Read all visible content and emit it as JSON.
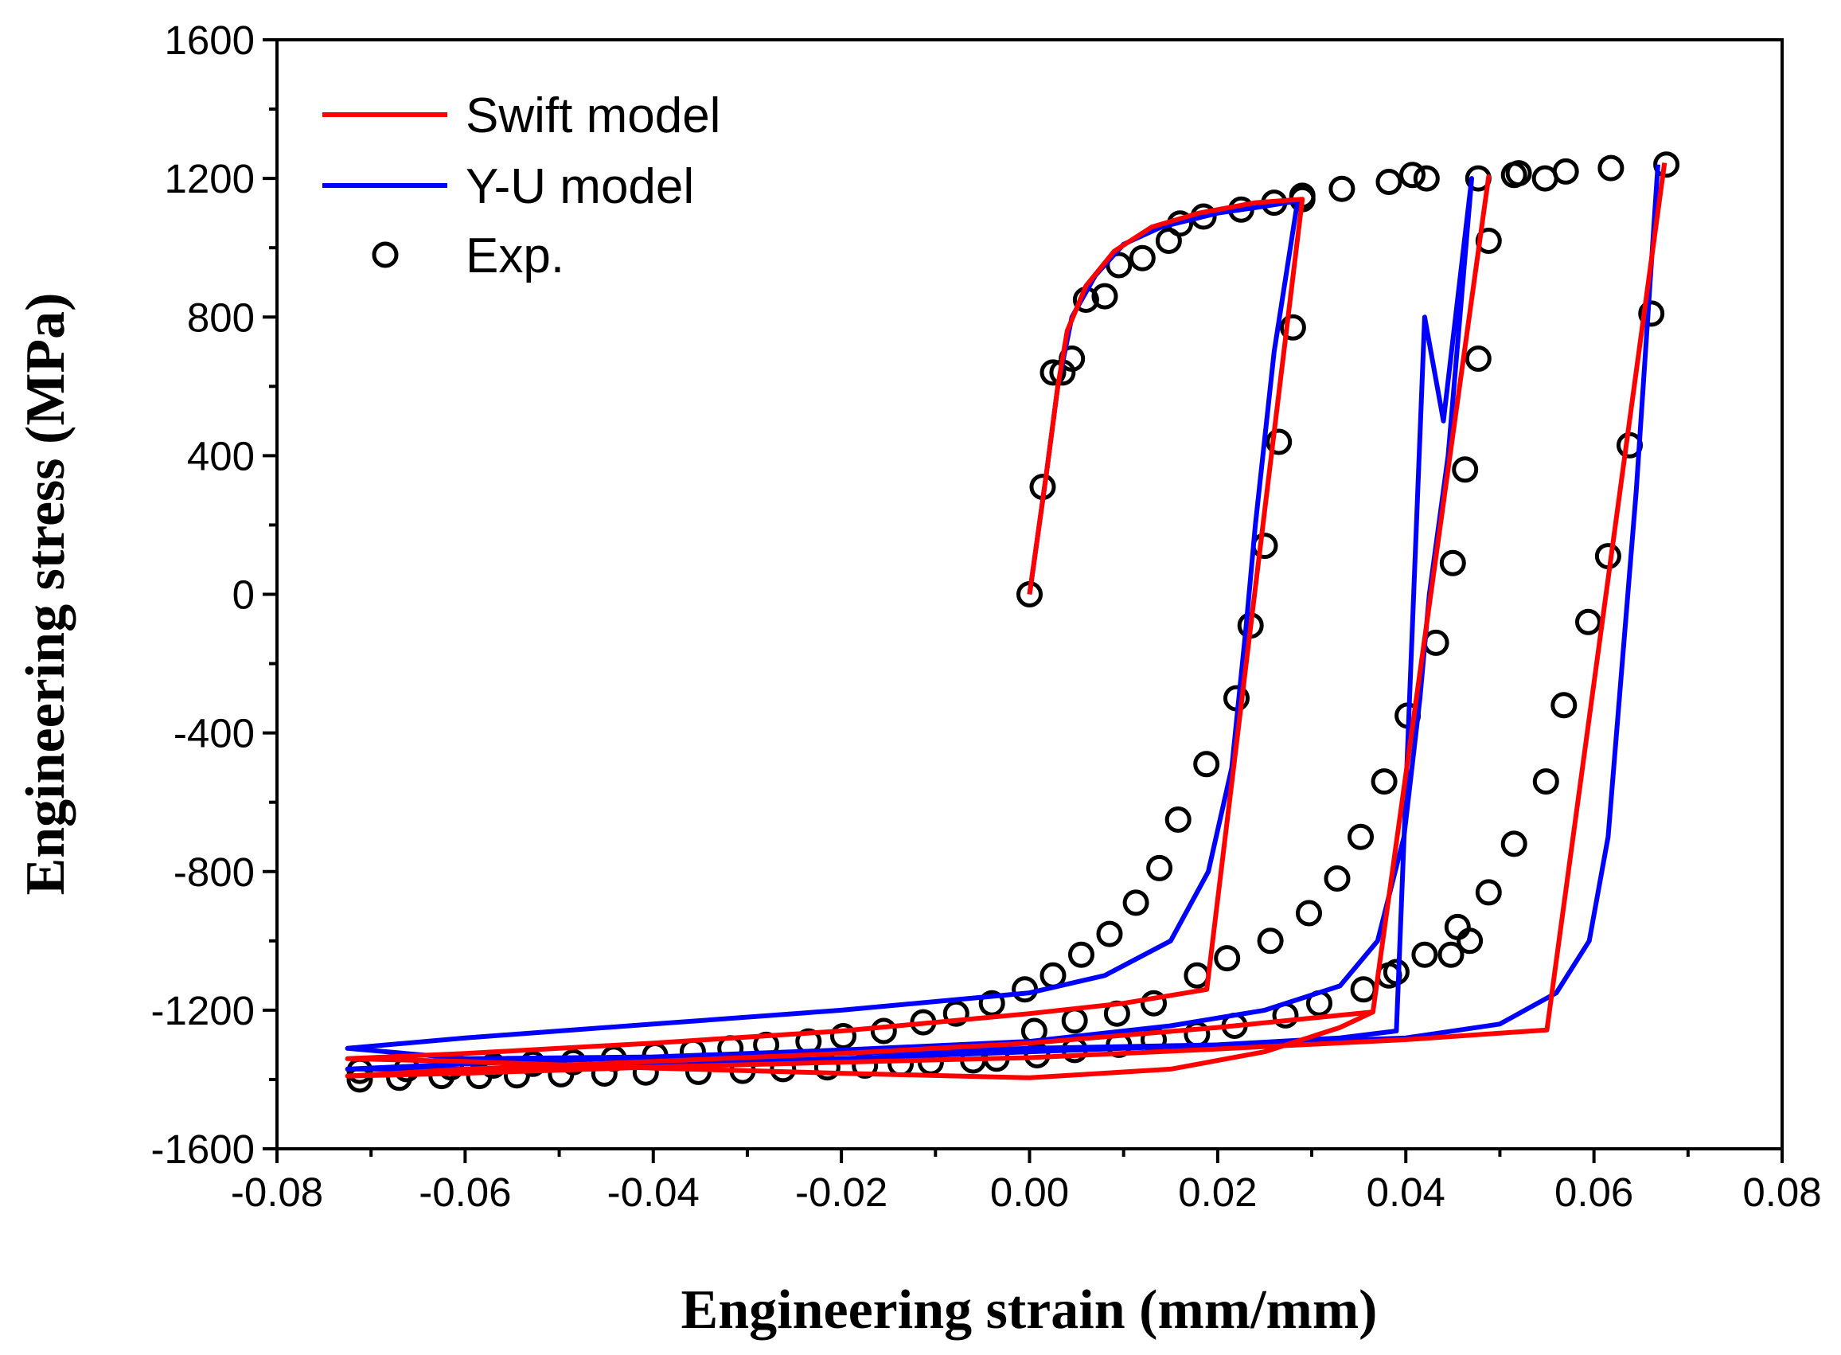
{
  "chart_data": {
    "type": "line",
    "xlabel": "Engineering strain (mm/mm)",
    "ylabel": "Engineering stress (MPa)",
    "xlim": [
      -0.08,
      0.08
    ],
    "ylim": [
      -1600,
      1600
    ],
    "xticks": [
      "-0.08",
      "-0.06",
      "-0.04",
      "-0.02",
      "0.00",
      "0.02",
      "0.04",
      "0.06",
      "0.08"
    ],
    "yticks": [
      "-1600",
      "-1200",
      "-800",
      "-400",
      "0",
      "400",
      "800",
      "1200",
      "1600"
    ],
    "legend_position": "top-left",
    "grid": false,
    "series": [
      {
        "name": "Swift model",
        "kind": "line",
        "color": "#ff0000",
        "x": [
          0.0,
          0.0018,
          0.003,
          0.004,
          0.006,
          0.009,
          0.013,
          0.018,
          0.024,
          0.029,
          0.018846,
          0.01,
          0.0,
          -0.02,
          -0.04,
          -0.06,
          -0.0725,
          -0.06,
          -0.04,
          -0.02,
          0.0,
          0.015,
          0.025,
          0.033,
          0.0365,
          0.0488,
          0.0365,
          0.02,
          0.0,
          -0.02,
          -0.04,
          -0.06,
          -0.0725,
          -0.06,
          -0.04,
          -0.02,
          0.0,
          0.02,
          0.04,
          0.055,
          0.0675
        ],
        "y": [
          0,
          350,
          600,
          760,
          890,
          990,
          1060,
          1100,
          1130,
          1140,
          -1140,
          -1180,
          -1210,
          -1260,
          -1295,
          -1325,
          -1340,
          -1348,
          -1367,
          -1382,
          -1395,
          -1370,
          -1320,
          -1250,
          -1205,
          1205,
          -1205,
          -1250,
          -1295,
          -1325,
          -1348,
          -1370,
          -1390,
          -1382,
          -1364,
          -1350,
          -1337,
          -1312,
          -1285,
          -1257,
          1245
        ]
      },
      {
        "name": "Y-U model",
        "kind": "line",
        "color": "#0000ff",
        "x": [
          0.0,
          0.0018,
          0.003,
          0.0045,
          0.007,
          0.01,
          0.014,
          0.02,
          0.025,
          0.0285,
          0.026,
          0.024,
          0.023,
          0.0215,
          0.019,
          0.015,
          0.008,
          0.0,
          -0.02,
          -0.04,
          -0.06,
          -0.0725,
          -0.06,
          -0.04,
          -0.02,
          0.0,
          0.02,
          0.033,
          0.039,
          0.042,
          0.044,
          0.047,
          0.0445,
          0.0425,
          0.0415,
          0.0398,
          0.037,
          0.033,
          0.025,
          0.015,
          0.0,
          -0.02,
          -0.04,
          -0.06,
          -0.0725,
          -0.06,
          -0.04,
          -0.02,
          0.0,
          0.02,
          0.04,
          0.05,
          0.056,
          0.0595,
          0.0615,
          0.0645,
          0.0668
        ],
        "y": [
          0,
          350,
          600,
          800,
          920,
          1010,
          1060,
          1100,
          1120,
          1135,
          700,
          200,
          -100,
          -500,
          -800,
          -1000,
          -1100,
          -1150,
          -1200,
          -1240,
          -1280,
          -1310,
          -1340,
          -1335,
          -1325,
          -1310,
          -1300,
          -1280,
          -1260,
          800,
          500,
          1200,
          400,
          0,
          -300,
          -700,
          -1000,
          -1130,
          -1200,
          -1245,
          -1290,
          -1315,
          -1335,
          -1355,
          -1370,
          -1370,
          -1355,
          -1340,
          -1320,
          -1300,
          -1280,
          -1240,
          -1150,
          -1000,
          -700,
          300,
          1240
        ]
      },
      {
        "name": "Exp.",
        "kind": "scatter",
        "color": "#000000",
        "x": [
          0.0,
          0.0014,
          0.0025,
          0.0035,
          0.0045,
          0.006,
          0.008,
          0.0095,
          0.012,
          0.0148,
          0.016,
          0.0185,
          0.0225,
          0.026,
          0.029,
          0.029,
          0.028,
          0.0265,
          0.025,
          0.0235,
          0.022,
          0.0188,
          0.0158,
          0.0138,
          0.0113,
          0.0085,
          0.0055,
          0.0025,
          -0.0005,
          -0.004,
          -0.0078,
          -0.0113,
          -0.0155,
          -0.0198,
          -0.0235,
          -0.028,
          -0.0318,
          -0.0358,
          -0.0398,
          -0.0442,
          -0.0485,
          -0.0528,
          -0.057,
          -0.0615,
          -0.0662,
          -0.0712,
          -0.0712,
          -0.067,
          -0.0625,
          -0.0585,
          -0.0545,
          -0.0498,
          -0.0452,
          -0.0408,
          -0.0352,
          -0.0305,
          -0.0262,
          -0.0215,
          -0.0175,
          -0.0137,
          -0.0105,
          -0.006,
          -0.0035,
          0.0008,
          0.0048,
          0.0095,
          0.0132,
          0.0178,
          0.0218,
          0.0272,
          0.0308,
          0.0355,
          0.039,
          0.0448,
          0.0468,
          0.0488,
          0.0477,
          0.0463,
          0.045,
          0.0432,
          0.0402,
          0.0377,
          0.0352,
          0.0327,
          0.0297,
          0.0256,
          0.021,
          0.0178,
          0.0132,
          0.0093,
          0.0048,
          0.0005,
          0.0332,
          0.0382,
          0.0422,
          0.0548,
          0.0515,
          0.0477,
          0.0407,
          0.052,
          0.057,
          0.0618,
          0.0677,
          0.0661,
          0.0638,
          0.0615,
          0.0594,
          0.0568,
          0.0549,
          0.0515,
          0.0488,
          0.0455,
          0.042,
          0.0382
        ],
        "y": [
          0,
          310,
          640,
          640,
          680,
          850,
          860,
          950,
          970,
          1020,
          1070,
          1090,
          1110,
          1130,
          1140,
          1150,
          770,
          440,
          140,
          -90,
          -300,
          -490,
          -650,
          -790,
          -890,
          -980,
          -1040,
          -1100,
          -1140,
          -1180,
          -1210,
          -1235,
          -1260,
          -1275,
          -1290,
          -1300,
          -1310,
          -1320,
          -1330,
          -1340,
          -1350,
          -1355,
          -1360,
          -1365,
          -1370,
          -1375,
          -1400,
          -1395,
          -1390,
          -1390,
          -1388,
          -1385,
          -1383,
          -1380,
          -1378,
          -1375,
          -1370,
          -1365,
          -1360,
          -1355,
          -1350,
          -1345,
          -1340,
          -1330,
          -1315,
          -1300,
          -1285,
          -1270,
          -1245,
          -1215,
          -1180,
          -1140,
          -1090,
          -1040,
          -1000,
          1020,
          680,
          360,
          90,
          -140,
          -350,
          -540,
          -700,
          -820,
          -920,
          -1000,
          -1050,
          -1100,
          -1180,
          -1210,
          -1230,
          -1260,
          1170,
          1190,
          1200,
          1200,
          1210,
          1200,
          1210,
          1215,
          1220,
          1230,
          1240,
          810,
          430,
          110,
          -80,
          -320,
          -540,
          -720,
          -860,
          -960,
          -1040,
          -1100
        ]
      }
    ]
  },
  "legend": [
    {
      "label": "Swift model",
      "color": "#ff0000",
      "marker": "line"
    },
    {
      "label": "Y-U model",
      "color": "#0000ff",
      "marker": "line"
    },
    {
      "label": "Exp.",
      "color": "#000000",
      "marker": "circle"
    }
  ]
}
